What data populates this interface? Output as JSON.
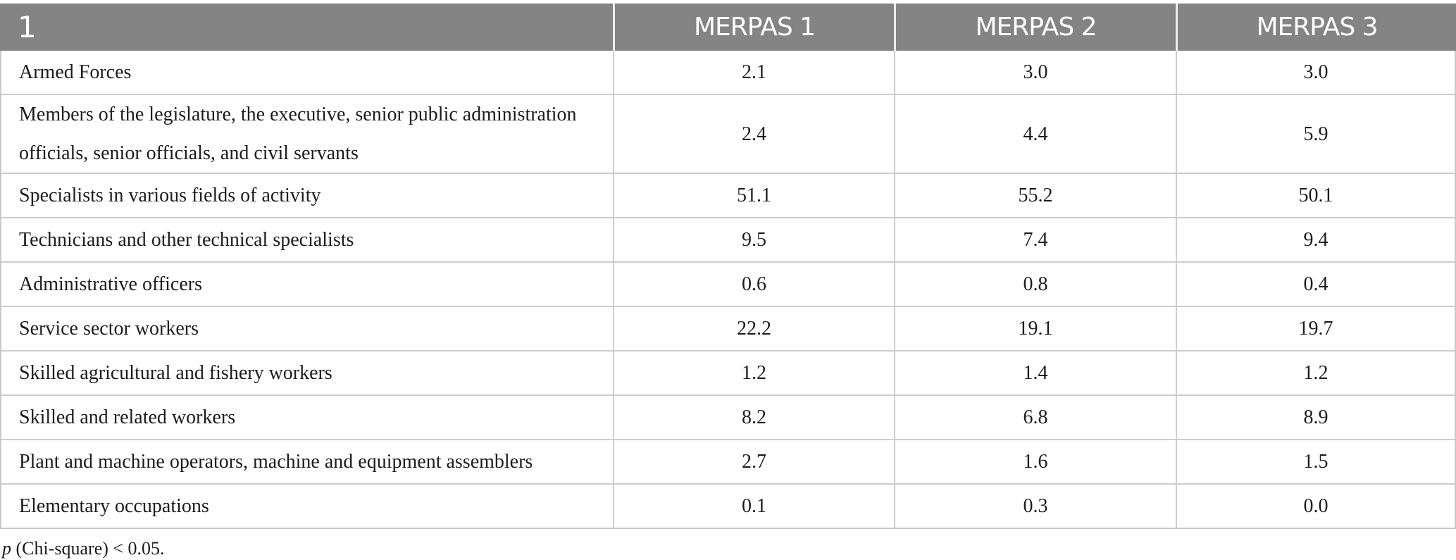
{
  "table": {
    "header": [
      "1",
      "MERPAS 1",
      "MERPAS 2",
      "MERPAS 3"
    ],
    "rows": [
      {
        "label": "Armed Forces",
        "values": [
          "2.1",
          "3.0",
          "3.0"
        ]
      },
      {
        "label": "Members of the legislature, the executive, senior public administration\nofficials, senior officials, and civil servants",
        "values": [
          "2.4",
          "4.4",
          "5.9"
        ]
      },
      {
        "label": "Specialists in various fields of activity",
        "values": [
          "51.1",
          "55.2",
          "50.1"
        ]
      },
      {
        "label": "Technicians and other technical specialists",
        "values": [
          "9.5",
          "7.4",
          "9.4"
        ]
      },
      {
        "label": "Administrative officers",
        "values": [
          "0.6",
          "0.8",
          "0.4"
        ]
      },
      {
        "label": "Service sector workers",
        "values": [
          "22.2",
          "19.1",
          "19.7"
        ]
      },
      {
        "label": "Skilled agricultural and fishery workers",
        "values": [
          "1.2",
          "1.4",
          "1.2"
        ]
      },
      {
        "label": "Skilled and related workers",
        "values": [
          "8.2",
          "6.8",
          "8.9"
        ]
      },
      {
        "label": "Plant and machine operators, machine and equipment assemblers",
        "values": [
          "2.7",
          "1.6",
          "1.5"
        ]
      },
      {
        "label": "Elementary occupations",
        "values": [
          "0.1",
          "0.3",
          "0.0"
        ]
      }
    ],
    "footnote": {
      "symbol": "p",
      "text": " (Chi-square) < 0.05."
    }
  },
  "colors": {
    "header_bg": "#848484",
    "header_text": "#ffffff",
    "border": "#cdcdcd",
    "text": "#1c1c1c"
  },
  "chart_data": {
    "type": "table",
    "title": "",
    "columns": [
      "1",
      "MERPAS 1",
      "MERPAS 2",
      "MERPAS 3"
    ],
    "categories": [
      "Armed Forces",
      "Members of the legislature, the executive, senior public administration officials, senior officials, and civil servants",
      "Specialists in various fields of activity",
      "Technicians and other technical specialists",
      "Administrative officers",
      "Service sector workers",
      "Skilled agricultural and fishery workers",
      "Skilled and related workers",
      "Plant and machine operators, machine and equipment assemblers",
      "Elementary occupations"
    ],
    "series": [
      {
        "name": "MERPAS 1",
        "values": [
          2.1,
          2.4,
          51.1,
          9.5,
          0.6,
          22.2,
          1.2,
          8.2,
          2.7,
          0.1
        ]
      },
      {
        "name": "MERPAS 2",
        "values": [
          3.0,
          4.4,
          55.2,
          7.4,
          0.8,
          19.1,
          1.4,
          6.8,
          1.6,
          0.3
        ]
      },
      {
        "name": "MERPAS 3",
        "values": [
          3.0,
          5.9,
          50.1,
          9.4,
          0.4,
          19.7,
          1.2,
          8.9,
          1.5,
          0.0
        ]
      }
    ],
    "annotations": [
      "p (Chi-square) < 0.05."
    ]
  }
}
